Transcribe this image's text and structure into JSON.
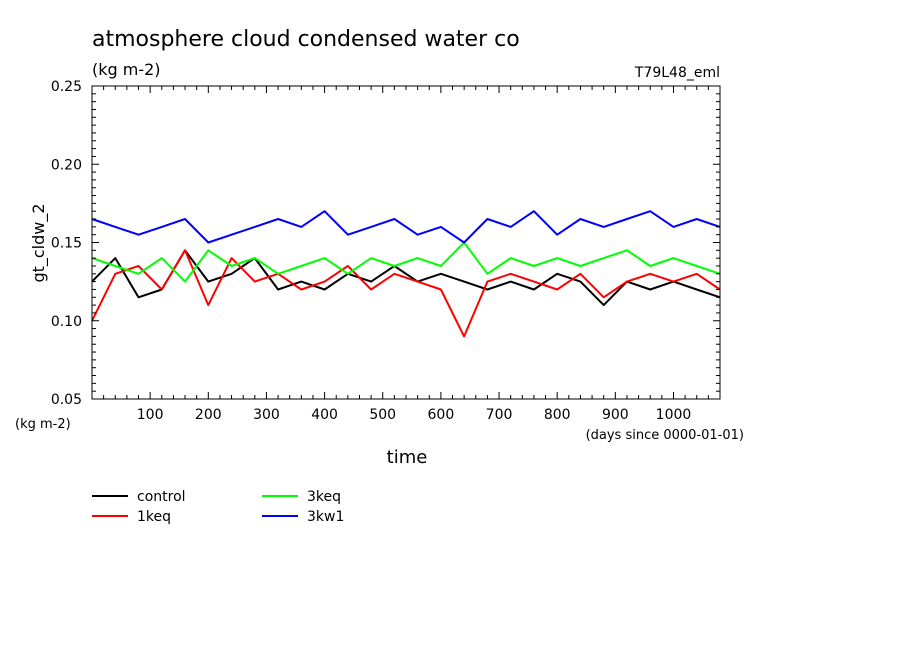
{
  "chart_data": {
    "type": "line",
    "title": "atmosphere cloud condensed water co",
    "subtitle": "(kg m-2)",
    "run_label": "T79L48_eml",
    "xlabel": "time",
    "x_units": "(days since 0000-01-01)",
    "ylabel": "gt_cldw_2",
    "y_units": "(kg m-2)",
    "xlim": [
      0,
      1080
    ],
    "ylim": [
      0.05,
      0.25
    ],
    "x_ticks": [
      100,
      200,
      300,
      400,
      500,
      600,
      700,
      800,
      900,
      1000
    ],
    "y_ticks": [
      "0.05",
      "0.10",
      "0.15",
      "0.20",
      "0.25"
    ],
    "grid": false,
    "legend_position": "bottom-left",
    "series": [
      {
        "name": "control",
        "color": "#000000",
        "x": [
          0,
          40,
          80,
          120,
          160,
          200,
          240,
          280,
          320,
          360,
          400,
          440,
          480,
          520,
          560,
          600,
          640,
          680,
          720,
          760,
          800,
          840,
          880,
          920,
          960,
          1000,
          1040,
          1080
        ],
        "values": [
          0.125,
          0.14,
          0.115,
          0.12,
          0.145,
          0.125,
          0.13,
          0.14,
          0.12,
          0.125,
          0.12,
          0.13,
          0.125,
          0.135,
          0.125,
          0.13,
          0.125,
          0.12,
          0.125,
          0.12,
          0.13,
          0.125,
          0.11,
          0.125,
          0.12,
          0.125,
          0.12,
          0.115
        ]
      },
      {
        "name": "1keq",
        "color": "#ff0000",
        "x": [
          0,
          40,
          80,
          120,
          160,
          200,
          240,
          280,
          320,
          360,
          400,
          440,
          480,
          520,
          560,
          600,
          640,
          680,
          720,
          760,
          800,
          840,
          880,
          920,
          960,
          1000,
          1040,
          1080
        ],
        "values": [
          0.1,
          0.13,
          0.135,
          0.12,
          0.145,
          0.11,
          0.14,
          0.125,
          0.13,
          0.12,
          0.125,
          0.135,
          0.12,
          0.13,
          0.125,
          0.12,
          0.09,
          0.125,
          0.13,
          0.125,
          0.12,
          0.13,
          0.115,
          0.125,
          0.13,
          0.125,
          0.13,
          0.12
        ]
      },
      {
        "name": "3keq",
        "color": "#00ff00",
        "x": [
          0,
          40,
          80,
          120,
          160,
          200,
          240,
          280,
          320,
          360,
          400,
          440,
          480,
          520,
          560,
          600,
          640,
          680,
          720,
          760,
          800,
          840,
          880,
          920,
          960,
          1000,
          1040,
          1080
        ],
        "values": [
          0.14,
          0.135,
          0.13,
          0.14,
          0.125,
          0.145,
          0.135,
          0.14,
          0.13,
          0.135,
          0.14,
          0.13,
          0.14,
          0.135,
          0.14,
          0.135,
          0.15,
          0.13,
          0.14,
          0.135,
          0.14,
          0.135,
          0.14,
          0.145,
          0.135,
          0.14,
          0.135,
          0.13
        ]
      },
      {
        "name": "3kw1",
        "color": "#0000ff",
        "x": [
          0,
          40,
          80,
          120,
          160,
          200,
          240,
          280,
          320,
          360,
          400,
          440,
          480,
          520,
          560,
          600,
          640,
          680,
          720,
          760,
          800,
          840,
          880,
          920,
          960,
          1000,
          1040,
          1080
        ],
        "values": [
          0.165,
          0.16,
          0.155,
          0.16,
          0.165,
          0.15,
          0.155,
          0.16,
          0.165,
          0.16,
          0.17,
          0.155,
          0.16,
          0.165,
          0.155,
          0.16,
          0.15,
          0.165,
          0.16,
          0.17,
          0.155,
          0.165,
          0.16,
          0.165,
          0.17,
          0.16,
          0.165,
          0.16
        ]
      }
    ]
  }
}
